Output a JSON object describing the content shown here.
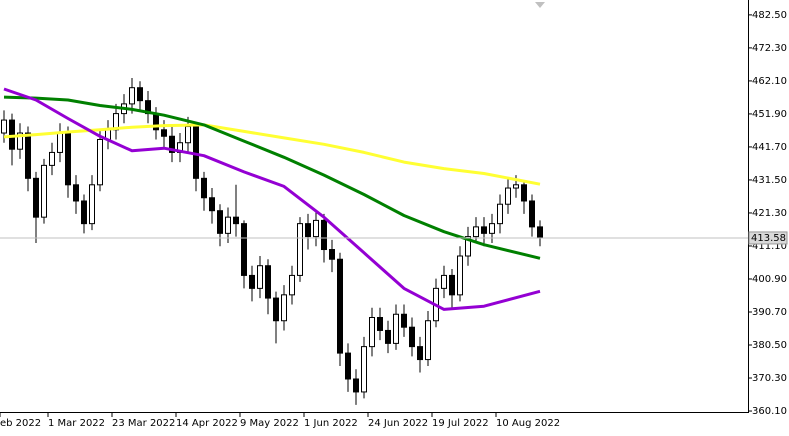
{
  "chart_data": {
    "type": "candlestick",
    "x": [
      0,
      1,
      2,
      3,
      4,
      5,
      6,
      7,
      8,
      9,
      10,
      11,
      12,
      13,
      14,
      15,
      16,
      17,
      18,
      19,
      20,
      21,
      22,
      23,
      24,
      25,
      26,
      27,
      28,
      29,
      30,
      31,
      32,
      33,
      34,
      35,
      36,
      37,
      38,
      39,
      40,
      41,
      42,
      43,
      44,
      45,
      46,
      47,
      48,
      49,
      50,
      51,
      52,
      53,
      54,
      55,
      56,
      57,
      58,
      59,
      60,
      61,
      62,
      63,
      64,
      65,
      66,
      67
    ],
    "open": [
      446,
      450,
      441,
      446,
      432,
      420,
      436,
      440,
      446,
      430,
      425,
      418,
      430,
      444,
      447,
      452,
      455,
      460,
      456,
      452,
      447,
      445,
      440,
      443,
      448,
      432,
      426,
      422,
      415,
      420,
      418,
      402,
      398,
      405,
      395,
      388,
      396,
      402,
      418,
      414,
      419,
      410,
      407,
      378,
      370,
      366,
      380,
      389,
      385,
      381,
      390,
      386,
      380,
      376,
      388,
      398,
      402,
      396,
      408,
      414,
      417,
      415,
      418,
      424,
      429,
      430,
      425,
      417
    ],
    "high": [
      453,
      452,
      449,
      448,
      434,
      438,
      443,
      449,
      448,
      433,
      427,
      433,
      447,
      450,
      455,
      458,
      463,
      462,
      459,
      454,
      450,
      448,
      446,
      451,
      449,
      434,
      429,
      424,
      423,
      430,
      419,
      405,
      408,
      407,
      397,
      399,
      405,
      420,
      421,
      422,
      421,
      413,
      409,
      381,
      373,
      383,
      392,
      392,
      388,
      393,
      393,
      389,
      383,
      391,
      401,
      405,
      404,
      411,
      417,
      420,
      420,
      421,
      427,
      432,
      433,
      431,
      427,
      419
    ],
    "low": [
      443,
      436,
      438,
      428,
      412,
      418,
      433,
      437,
      426,
      421,
      415,
      416,
      428,
      441,
      444,
      449,
      452,
      453,
      449,
      444,
      441,
      437,
      437,
      440,
      428,
      422,
      418,
      411,
      412,
      414,
      398,
      394,
      395,
      390,
      381,
      385,
      393,
      400,
      410,
      411,
      406,
      403,
      374,
      366,
      362,
      364,
      377,
      382,
      378,
      379,
      383,
      377,
      372,
      374,
      386,
      395,
      392,
      394,
      405,
      412,
      411,
      412,
      415,
      421,
      426,
      421,
      414,
      411
    ],
    "close": [
      450,
      441,
      446,
      432,
      420,
      436,
      440,
      446,
      430,
      425,
      418,
      430,
      444,
      447,
      452,
      455,
      460,
      456,
      452,
      447,
      445,
      440,
      443,
      448,
      432,
      426,
      422,
      415,
      420,
      418,
      402,
      398,
      405,
      395,
      388,
      396,
      402,
      418,
      414,
      419,
      410,
      407,
      378,
      370,
      366,
      380,
      389,
      385,
      381,
      390,
      386,
      380,
      376,
      388,
      398,
      402,
      396,
      408,
      414,
      417,
      415,
      418,
      424,
      429,
      430,
      425,
      417,
      413.58
    ],
    "series": [
      {
        "color": "#ffff33",
        "x": [
          0,
          4,
          8,
          12,
          16,
          20,
          25,
          30,
          35,
          40,
          45,
          50,
          55,
          60,
          67
        ],
        "values": [
          444.8,
          445.5,
          446.3,
          447,
          447.8,
          448.3,
          448.5,
          446.5,
          444.5,
          442.5,
          440,
          437,
          435,
          433.5,
          430.2
        ]
      },
      {
        "color": "#008000",
        "x": [
          0,
          4,
          8,
          12,
          16,
          20,
          25,
          30,
          35,
          40,
          45,
          50,
          55,
          60,
          67
        ],
        "values": [
          457.1,
          456.8,
          456.2,
          454.5,
          453.3,
          451.5,
          448.5,
          443.5,
          438.5,
          433,
          427,
          420.5,
          415.5,
          411.5,
          407.3
        ]
      },
      {
        "color": "#9400d3",
        "x": [
          0,
          4,
          8,
          12,
          16,
          20,
          25,
          30,
          35,
          40,
          45,
          50,
          55,
          60,
          67
        ],
        "values": [
          459.6,
          456.2,
          450.5,
          445,
          440.5,
          441.3,
          439,
          434,
          429.5,
          420,
          409,
          398,
          391.5,
          392.5,
          397.1
        ]
      }
    ],
    "last_price": 413.58,
    "xlim": [
      -0.5,
      93
    ],
    "ylim": [
      359.8,
      487.1
    ],
    "xticks": [
      {
        "value": -0.5,
        "label": "eb 2022"
      },
      {
        "value": 5.5,
        "label": "1 Mar 2022"
      },
      {
        "value": 13.5,
        "label": "23 Mar 2022"
      },
      {
        "value": 21.5,
        "label": "14 Apr 2022"
      },
      {
        "value": 29.5,
        "label": "9 May 2022"
      },
      {
        "value": 37.5,
        "label": "1 Jun 2022"
      },
      {
        "value": 45.5,
        "label": "24 Jun 2022"
      },
      {
        "value": 53.5,
        "label": "19 Jul 2022"
      },
      {
        "value": 61.5,
        "label": "10 Aug 2022"
      }
    ],
    "yticks": [
      {
        "value": 482.5,
        "label": "482.50"
      },
      {
        "value": 472.3,
        "label": "472.30"
      },
      {
        "value": 462.1,
        "label": "462.10"
      },
      {
        "value": 451.9,
        "label": "451.90"
      },
      {
        "value": 441.7,
        "label": "441.70"
      },
      {
        "value": 431.5,
        "label": "431.50"
      },
      {
        "value": 421.3,
        "label": "421.30"
      },
      {
        "value": 411.1,
        "label": "411.10"
      },
      {
        "value": 400.9,
        "label": "400.90"
      },
      {
        "value": 390.7,
        "label": "390.70"
      },
      {
        "value": 380.5,
        "label": "380.50"
      },
      {
        "value": 370.3,
        "label": "370.30"
      },
      {
        "value": 360.1,
        "label": "360.10"
      }
    ],
    "bull_color": "#ffffff",
    "bear_color": "#000000"
  }
}
